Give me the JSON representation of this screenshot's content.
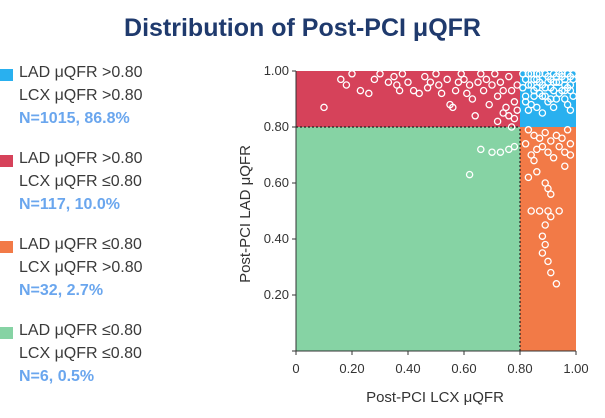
{
  "colors": {
    "blue": "#29b0ef",
    "red": "#d6425a",
    "orange": "#f27a47",
    "green": "#86d3a4",
    "title": "#1f3a6d",
    "count": "#6aa6ee"
  },
  "legend": [
    {
      "line1": "LAD μQFR >0.80",
      "line2": "LCX μQFR >0.80",
      "count": "N=1015, 86.8%",
      "color": "#29b0ef"
    },
    {
      "line1": "LAD μQFR >0.80",
      "line2": "LCX μQFR ≤0.80",
      "count": "N=117, 10.0%",
      "color": "#d6425a"
    },
    {
      "line1": "LAD μQFR ≤0.80",
      "line2": "LCX μQFR >0.80",
      "count": "N=32, 2.7%",
      "color": "#f27a47"
    },
    {
      "line1": "LAD μQFR ≤0.80",
      "line2": "LCX μQFR ≤0.80",
      "count": "N=6, 0.5%",
      "color": "#86d3a4"
    }
  ],
  "chart_data": {
    "type": "scatter",
    "title": "Distribution of Post-PCI μQFR",
    "xlabel": "Post-PCI LCX μQFR",
    "ylabel": "Post-PCI LAD μQFR",
    "xlim": [
      0,
      1.0
    ],
    "ylim": [
      0,
      1.0
    ],
    "xticks": [
      "0",
      "0.20",
      "0.40",
      "0.60",
      "0.80",
      "1.00"
    ],
    "yticks": [
      "0.20",
      "0.40",
      "0.60",
      "0.80",
      "1.00"
    ],
    "threshold": 0.8,
    "regions": [
      {
        "x": [
          0.8,
          1.0
        ],
        "y": [
          0.8,
          1.0
        ],
        "color": "#29b0ef"
      },
      {
        "x": [
          0.0,
          0.8
        ],
        "y": [
          0.8,
          1.0
        ],
        "color": "#d6425a"
      },
      {
        "x": [
          0.8,
          1.0
        ],
        "y": [
          0.0,
          0.8
        ],
        "color": "#f27a47"
      },
      {
        "x": [
          0.0,
          0.8
        ],
        "y": [
          0.0,
          0.8
        ],
        "color": "#86d3a4"
      }
    ],
    "grid": false,
    "legend_position": "left",
    "points": [
      [
        0.1,
        0.87
      ],
      [
        0.16,
        0.97
      ],
      [
        0.18,
        0.95
      ],
      [
        0.2,
        0.99
      ],
      [
        0.23,
        0.93
      ],
      [
        0.26,
        0.92
      ],
      [
        0.28,
        0.97
      ],
      [
        0.3,
        0.99
      ],
      [
        0.33,
        0.96
      ],
      [
        0.35,
        0.98
      ],
      [
        0.36,
        0.95
      ],
      [
        0.37,
        0.93
      ],
      [
        0.38,
        0.99
      ],
      [
        0.4,
        0.96
      ],
      [
        0.42,
        0.93
      ],
      [
        0.44,
        0.92
      ],
      [
        0.46,
        0.98
      ],
      [
        0.47,
        0.94
      ],
      [
        0.48,
        0.96
      ],
      [
        0.5,
        0.99
      ],
      [
        0.51,
        0.95
      ],
      [
        0.52,
        0.92
      ],
      [
        0.54,
        0.97
      ],
      [
        0.55,
        0.88
      ],
      [
        0.56,
        0.87
      ],
      [
        0.57,
        0.93
      ],
      [
        0.58,
        0.96
      ],
      [
        0.59,
        0.99
      ],
      [
        0.6,
        0.97
      ],
      [
        0.61,
        0.92
      ],
      [
        0.62,
        0.95
      ],
      [
        0.63,
        0.9
      ],
      [
        0.64,
        0.84
      ],
      [
        0.65,
        0.96
      ],
      [
        0.66,
        0.99
      ],
      [
        0.67,
        0.93
      ],
      [
        0.68,
        0.97
      ],
      [
        0.69,
        0.88
      ],
      [
        0.7,
        0.95
      ],
      [
        0.71,
        0.99
      ],
      [
        0.72,
        0.91
      ],
      [
        0.73,
        0.96
      ],
      [
        0.74,
        0.93
      ],
      [
        0.75,
        0.87
      ],
      [
        0.76,
        0.98
      ],
      [
        0.77,
        0.93
      ],
      [
        0.78,
        0.89
      ],
      [
        0.79,
        0.95
      ],
      [
        0.72,
        0.82
      ],
      [
        0.74,
        0.85
      ],
      [
        0.76,
        0.84
      ],
      [
        0.78,
        0.83
      ],
      [
        0.79,
        0.86
      ],
      [
        0.77,
        0.8
      ],
      [
        0.81,
        0.99
      ],
      [
        0.82,
        0.97
      ],
      [
        0.83,
        0.95
      ],
      [
        0.84,
        0.99
      ],
      [
        0.85,
        0.93
      ],
      [
        0.86,
        0.97
      ],
      [
        0.87,
        0.99
      ],
      [
        0.88,
        0.95
      ],
      [
        0.89,
        0.91
      ],
      [
        0.9,
        0.98
      ],
      [
        0.91,
        0.94
      ],
      [
        0.92,
        0.99
      ],
      [
        0.93,
        0.96
      ],
      [
        0.94,
        0.92
      ],
      [
        0.95,
        0.98
      ],
      [
        0.96,
        0.95
      ],
      [
        0.97,
        0.99
      ],
      [
        0.98,
        0.93
      ],
      [
        0.99,
        0.97
      ],
      [
        0.82,
        0.91
      ],
      [
        0.84,
        0.88
      ],
      [
        0.86,
        0.94
      ],
      [
        0.88,
        0.85
      ],
      [
        0.9,
        0.89
      ],
      [
        0.92,
        0.87
      ],
      [
        0.94,
        0.96
      ],
      [
        0.96,
        0.9
      ],
      [
        0.98,
        0.86
      ],
      [
        0.83,
        0.86
      ],
      [
        0.85,
        0.97
      ],
      [
        0.87,
        0.92
      ],
      [
        0.89,
        0.99
      ],
      [
        0.91,
        0.9
      ],
      [
        0.93,
        0.98
      ],
      [
        0.95,
        0.93
      ],
      [
        0.97,
        0.88
      ],
      [
        0.99,
        0.99
      ],
      [
        0.81,
        0.94
      ],
      [
        0.82,
        0.89
      ],
      [
        0.84,
        0.95
      ],
      [
        0.86,
        0.99
      ],
      [
        0.88,
        0.91
      ],
      [
        0.9,
        0.96
      ],
      [
        0.92,
        0.93
      ],
      [
        0.94,
        0.99
      ],
      [
        0.96,
        0.97
      ],
      [
        0.98,
        0.95
      ],
      [
        0.99,
        0.91
      ],
      [
        0.83,
        0.99
      ],
      [
        0.87,
        0.96
      ],
      [
        0.91,
        0.97
      ],
      [
        0.95,
        0.99
      ],
      [
        0.97,
        0.94
      ],
      [
        0.85,
        0.91
      ],
      [
        0.89,
        0.94
      ],
      [
        0.93,
        0.9
      ],
      [
        0.86,
        0.87
      ],
      [
        0.92,
        0.96
      ],
      [
        0.96,
        0.93
      ],
      [
        0.98,
        0.98
      ],
      [
        0.83,
        0.79
      ],
      [
        0.85,
        0.77
      ],
      [
        0.87,
        0.76
      ],
      [
        0.89,
        0.78
      ],
      [
        0.91,
        0.75
      ],
      [
        0.93,
        0.77
      ],
      [
        0.95,
        0.76
      ],
      [
        0.97,
        0.79
      ],
      [
        0.82,
        0.74
      ],
      [
        0.86,
        0.72
      ],
      [
        0.84,
        0.7
      ],
      [
        0.88,
        0.73
      ],
      [
        0.9,
        0.71
      ],
      [
        0.94,
        0.73
      ],
      [
        0.96,
        0.71
      ],
      [
        0.98,
        0.74
      ],
      [
        0.85,
        0.68
      ],
      [
        0.92,
        0.69
      ],
      [
        0.96,
        0.66
      ],
      [
        0.98,
        0.7
      ],
      [
        0.83,
        0.62
      ],
      [
        0.86,
        0.64
      ],
      [
        0.89,
        0.6
      ],
      [
        0.9,
        0.58
      ],
      [
        0.91,
        0.56
      ],
      [
        0.84,
        0.5
      ],
      [
        0.87,
        0.5
      ],
      [
        0.9,
        0.5
      ],
      [
        0.94,
        0.5
      ],
      [
        0.91,
        0.48
      ],
      [
        0.89,
        0.45
      ],
      [
        0.88,
        0.41
      ],
      [
        0.89,
        0.38
      ],
      [
        0.88,
        0.35
      ],
      [
        0.9,
        0.32
      ],
      [
        0.91,
        0.28
      ],
      [
        0.93,
        0.24
      ],
      [
        0.73,
        0.71
      ],
      [
        0.76,
        0.72
      ],
      [
        0.78,
        0.73
      ],
      [
        0.66,
        0.72
      ],
      [
        0.7,
        0.71
      ],
      [
        0.62,
        0.63
      ]
    ]
  }
}
